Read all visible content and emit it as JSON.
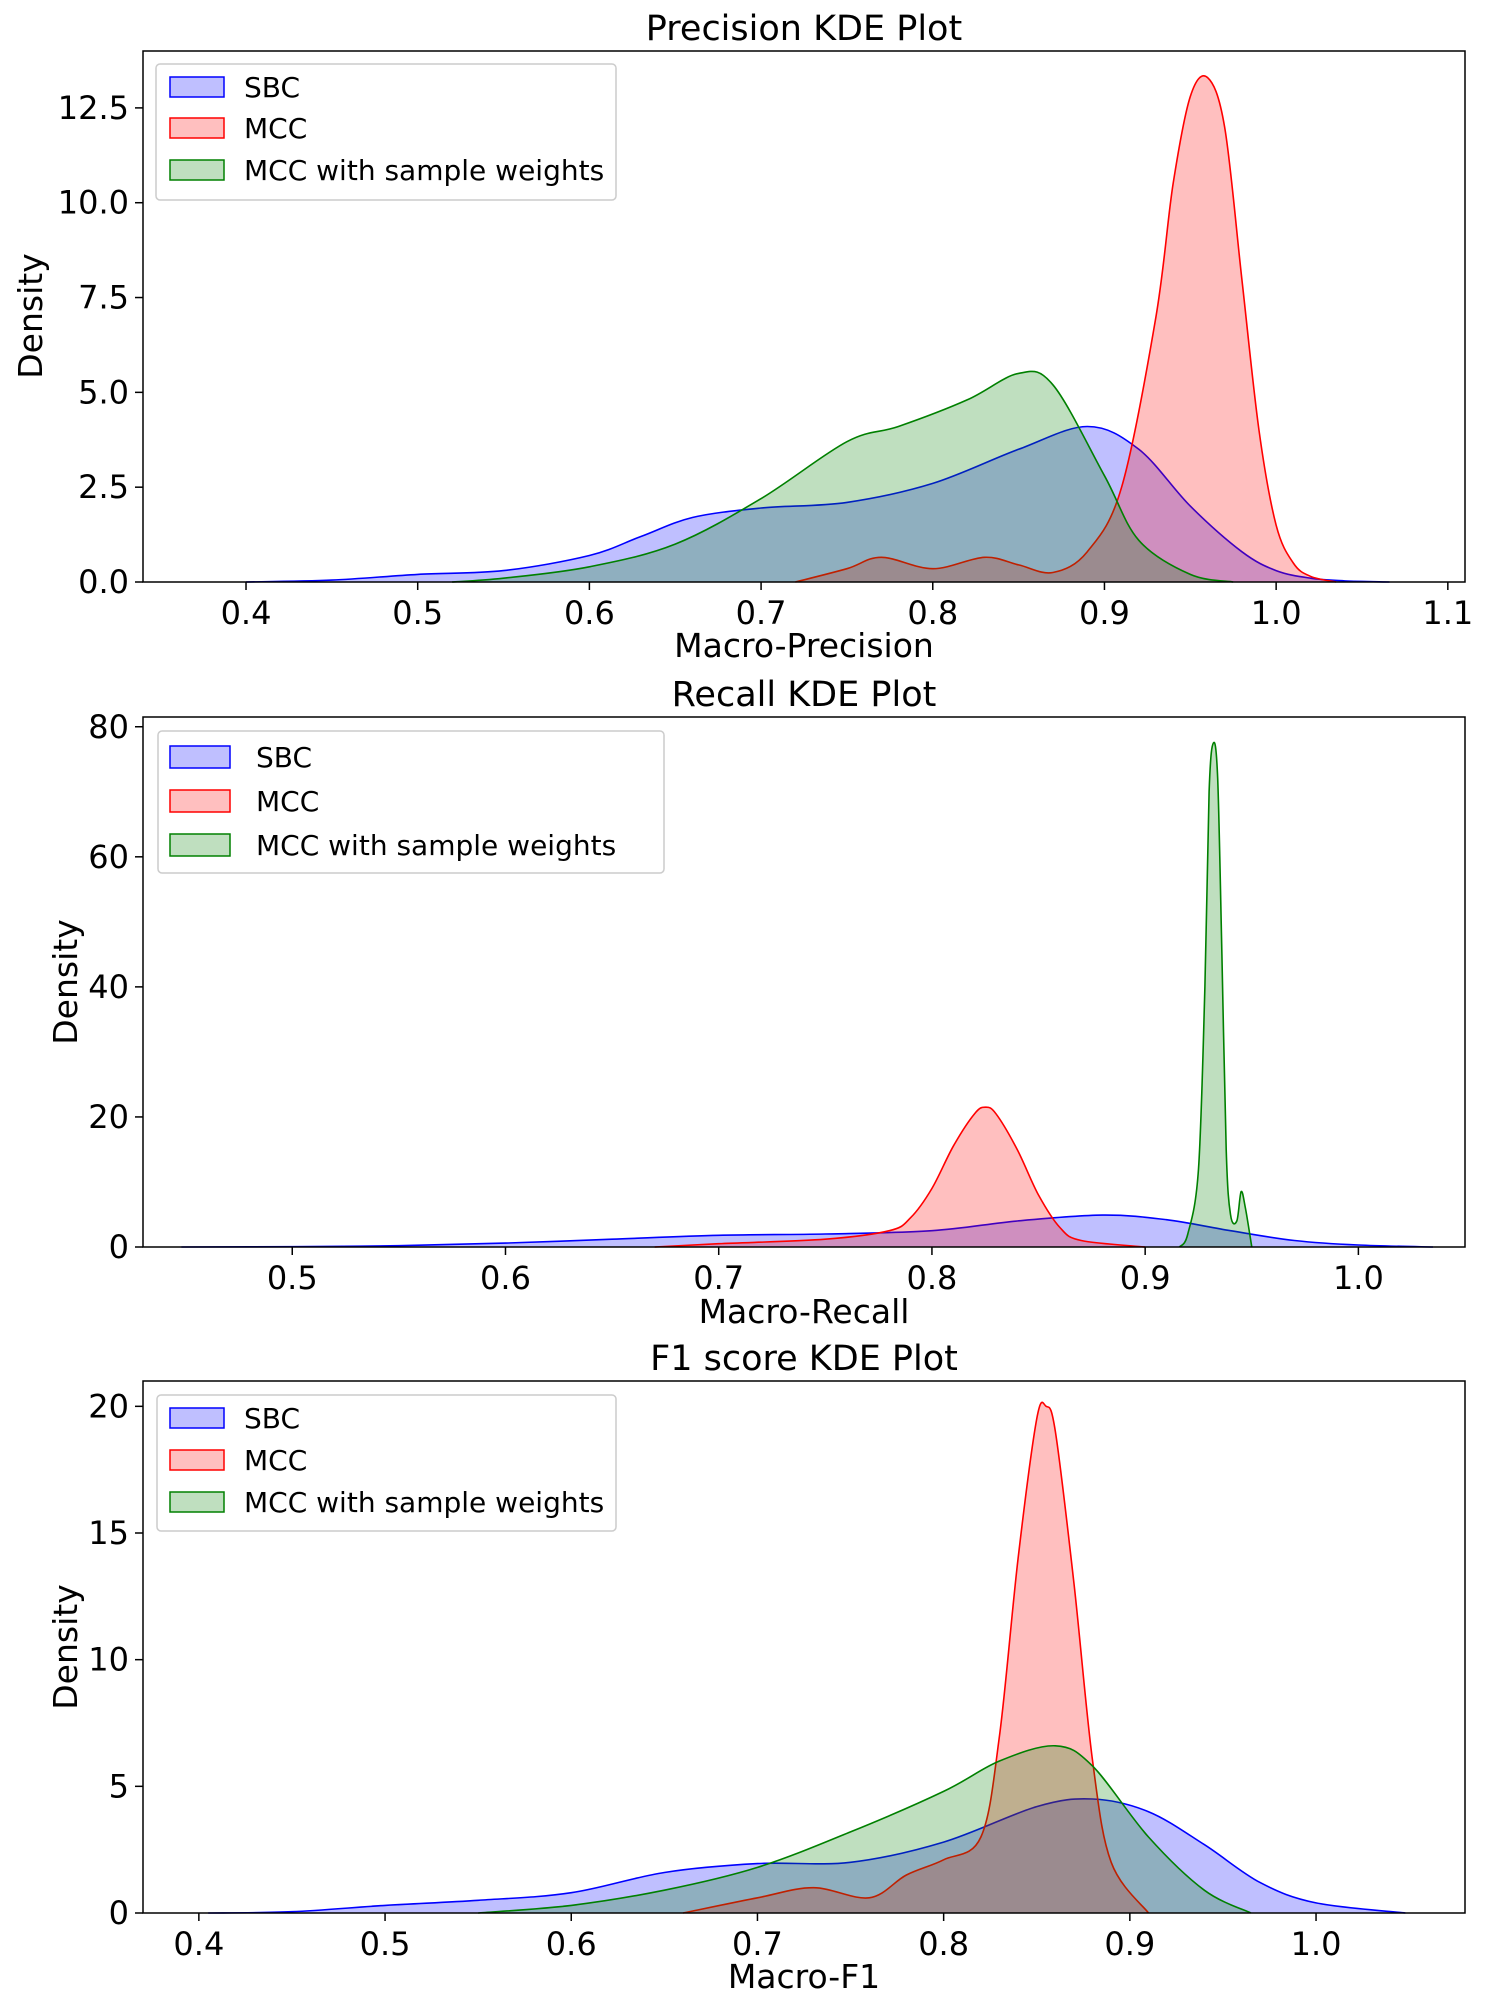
{
  "chart_data": [
    {
      "type": "area",
      "title": "Precision KDE Plot",
      "xlabel": "Macro-Precision",
      "ylabel": "Density",
      "xlim": [
        0.34,
        1.11
      ],
      "ylim": [
        0,
        14.0
      ],
      "xticks": [
        0.4,
        0.5,
        0.6,
        0.7,
        0.8,
        0.9,
        1.0,
        1.1
      ],
      "xtick_labels": [
        "0.4",
        "0.5",
        "0.6",
        "0.7",
        "0.8",
        "0.9",
        "1.0",
        "1.1"
      ],
      "yticks": [
        0,
        2.5,
        5,
        7.5,
        10,
        12.5
      ],
      "ytick_labels": [
        "0.0",
        "2.5",
        "5.0",
        "7.5",
        "10.0",
        "12.5"
      ],
      "legend_position": "upper-left",
      "series": [
        {
          "name": "SBC",
          "color": "#0000ff",
          "fill": "#0000ff",
          "x": [
            0.4,
            0.45,
            0.5,
            0.55,
            0.6,
            0.63,
            0.66,
            0.7,
            0.75,
            0.8,
            0.85,
            0.89,
            0.92,
            0.95,
            0.98,
            1.0,
            1.02,
            1.04,
            1.066
          ],
          "y": [
            0,
            0.05,
            0.2,
            0.3,
            0.7,
            1.2,
            1.7,
            1.95,
            2.1,
            2.6,
            3.5,
            4.1,
            3.5,
            2.0,
            0.8,
            0.3,
            0.1,
            0.03,
            0
          ]
        },
        {
          "name": "MCC",
          "color": "#ff0000",
          "fill": "#ff0000",
          "x": [
            0.72,
            0.75,
            0.77,
            0.8,
            0.83,
            0.85,
            0.87,
            0.89,
            0.91,
            0.93,
            0.94,
            0.95,
            0.96,
            0.97,
            0.98,
            0.99,
            1.0,
            1.01,
            1.02,
            1.035
          ],
          "y": [
            0,
            0.35,
            0.65,
            0.35,
            0.65,
            0.45,
            0.25,
            0.8,
            2.5,
            7.0,
            10.5,
            12.8,
            13.3,
            12.0,
            8.0,
            4.0,
            1.5,
            0.5,
            0.15,
            0
          ]
        },
        {
          "name": "MCC with sample weights",
          "color": "#008000",
          "fill": "#008000",
          "x": [
            0.52,
            0.55,
            0.6,
            0.65,
            0.7,
            0.75,
            0.78,
            0.82,
            0.85,
            0.87,
            0.9,
            0.92,
            0.95,
            0.975
          ],
          "y": [
            0,
            0.1,
            0.4,
            1.0,
            2.2,
            3.7,
            4.1,
            4.8,
            5.5,
            5.2,
            2.8,
            1.1,
            0.2,
            0
          ]
        }
      ]
    },
    {
      "type": "area",
      "title": "Recall KDE Plot",
      "xlabel": "Macro-Recall",
      "ylabel": "Density",
      "xlim": [
        0.43,
        1.05
      ],
      "ylim": [
        0,
        81.5
      ],
      "xticks": [
        0.5,
        0.6,
        0.7,
        0.8,
        0.9,
        1.0
      ],
      "xtick_labels": [
        "0.5",
        "0.6",
        "0.7",
        "0.8",
        "0.9",
        "1.0"
      ],
      "yticks": [
        0,
        20,
        40,
        60,
        80
      ],
      "ytick_labels": [
        "0",
        "20",
        "40",
        "60",
        "80"
      ],
      "legend_position": "upper-left",
      "series": [
        {
          "name": "SBC",
          "color": "#0000ff",
          "fill": "#0000ff",
          "x": [
            0.448,
            0.5,
            0.55,
            0.6,
            0.65,
            0.7,
            0.75,
            0.8,
            0.84,
            0.88,
            0.91,
            0.94,
            0.97,
            1.0,
            1.035
          ],
          "y": [
            0,
            0.05,
            0.2,
            0.6,
            1.2,
            1.8,
            2.0,
            2.5,
            4.0,
            4.9,
            4.2,
            2.5,
            1.0,
            0.3,
            0
          ]
        },
        {
          "name": "MCC",
          "color": "#ff0000",
          "fill": "#ff0000",
          "x": [
            0.67,
            0.7,
            0.75,
            0.78,
            0.79,
            0.8,
            0.81,
            0.82,
            0.825,
            0.83,
            0.84,
            0.85,
            0.86,
            0.87,
            0.9
          ],
          "y": [
            0,
            0.5,
            1.2,
            2.5,
            4.5,
            9.0,
            15.5,
            20.5,
            21.5,
            20.5,
            15.0,
            8.0,
            3.0,
            1.0,
            0
          ]
        },
        {
          "name": "MCC with sample weights",
          "color": "#008000",
          "fill": "#008000",
          "x": [
            0.916,
            0.92,
            0.925,
            0.928,
            0.93,
            0.932,
            0.934,
            0.936,
            0.938,
            0.94,
            0.943,
            0.945,
            0.947,
            0.95
          ],
          "y": [
            0,
            2,
            12,
            40,
            70,
            77.5,
            72,
            45,
            15,
            5,
            4,
            8.5,
            6,
            0
          ]
        }
      ]
    },
    {
      "type": "area",
      "title": "F1 score KDE Plot",
      "xlabel": "Macro-F1",
      "ylabel": "Density",
      "xlim": [
        0.37,
        1.08
      ],
      "ylim": [
        0,
        21.0
      ],
      "xticks": [
        0.4,
        0.5,
        0.6,
        0.7,
        0.8,
        0.9,
        1.0
      ],
      "xtick_labels": [
        "0.4",
        "0.5",
        "0.6",
        "0.7",
        "0.8",
        "0.9",
        "1.0"
      ],
      "yticks": [
        0,
        5,
        10,
        15,
        20
      ],
      "ytick_labels": [
        "0",
        "5",
        "10",
        "15",
        "20"
      ],
      "legend_position": "upper-left",
      "series": [
        {
          "name": "SBC",
          "color": "#0000ff",
          "fill": "#0000ff",
          "x": [
            0.405,
            0.45,
            0.5,
            0.55,
            0.6,
            0.65,
            0.7,
            0.75,
            0.8,
            0.85,
            0.88,
            0.91,
            0.94,
            0.97,
            1.0,
            1.048
          ],
          "y": [
            0,
            0.05,
            0.3,
            0.5,
            0.8,
            1.6,
            1.95,
            2.0,
            2.8,
            4.2,
            4.5,
            4.0,
            2.7,
            1.2,
            0.4,
            0
          ]
        },
        {
          "name": "MCC",
          "color": "#ff0000",
          "fill": "#ff0000",
          "x": [
            0.66,
            0.7,
            0.73,
            0.76,
            0.78,
            0.8,
            0.82,
            0.83,
            0.84,
            0.85,
            0.855,
            0.86,
            0.87,
            0.88,
            0.89,
            0.91
          ],
          "y": [
            0,
            0.6,
            1.0,
            0.6,
            1.5,
            2.1,
            3.0,
            7.0,
            14.0,
            19.5,
            20.0,
            19.0,
            13.0,
            6.0,
            2.0,
            0
          ]
        },
        {
          "name": "MCC with sample weights",
          "color": "#008000",
          "fill": "#008000",
          "x": [
            0.55,
            0.6,
            0.65,
            0.7,
            0.75,
            0.8,
            0.83,
            0.86,
            0.88,
            0.91,
            0.94,
            0.965
          ],
          "y": [
            0,
            0.3,
            0.9,
            1.8,
            3.2,
            4.8,
            6.0,
            6.6,
            5.8,
            3.0,
            0.9,
            0
          ]
        }
      ]
    }
  ]
}
